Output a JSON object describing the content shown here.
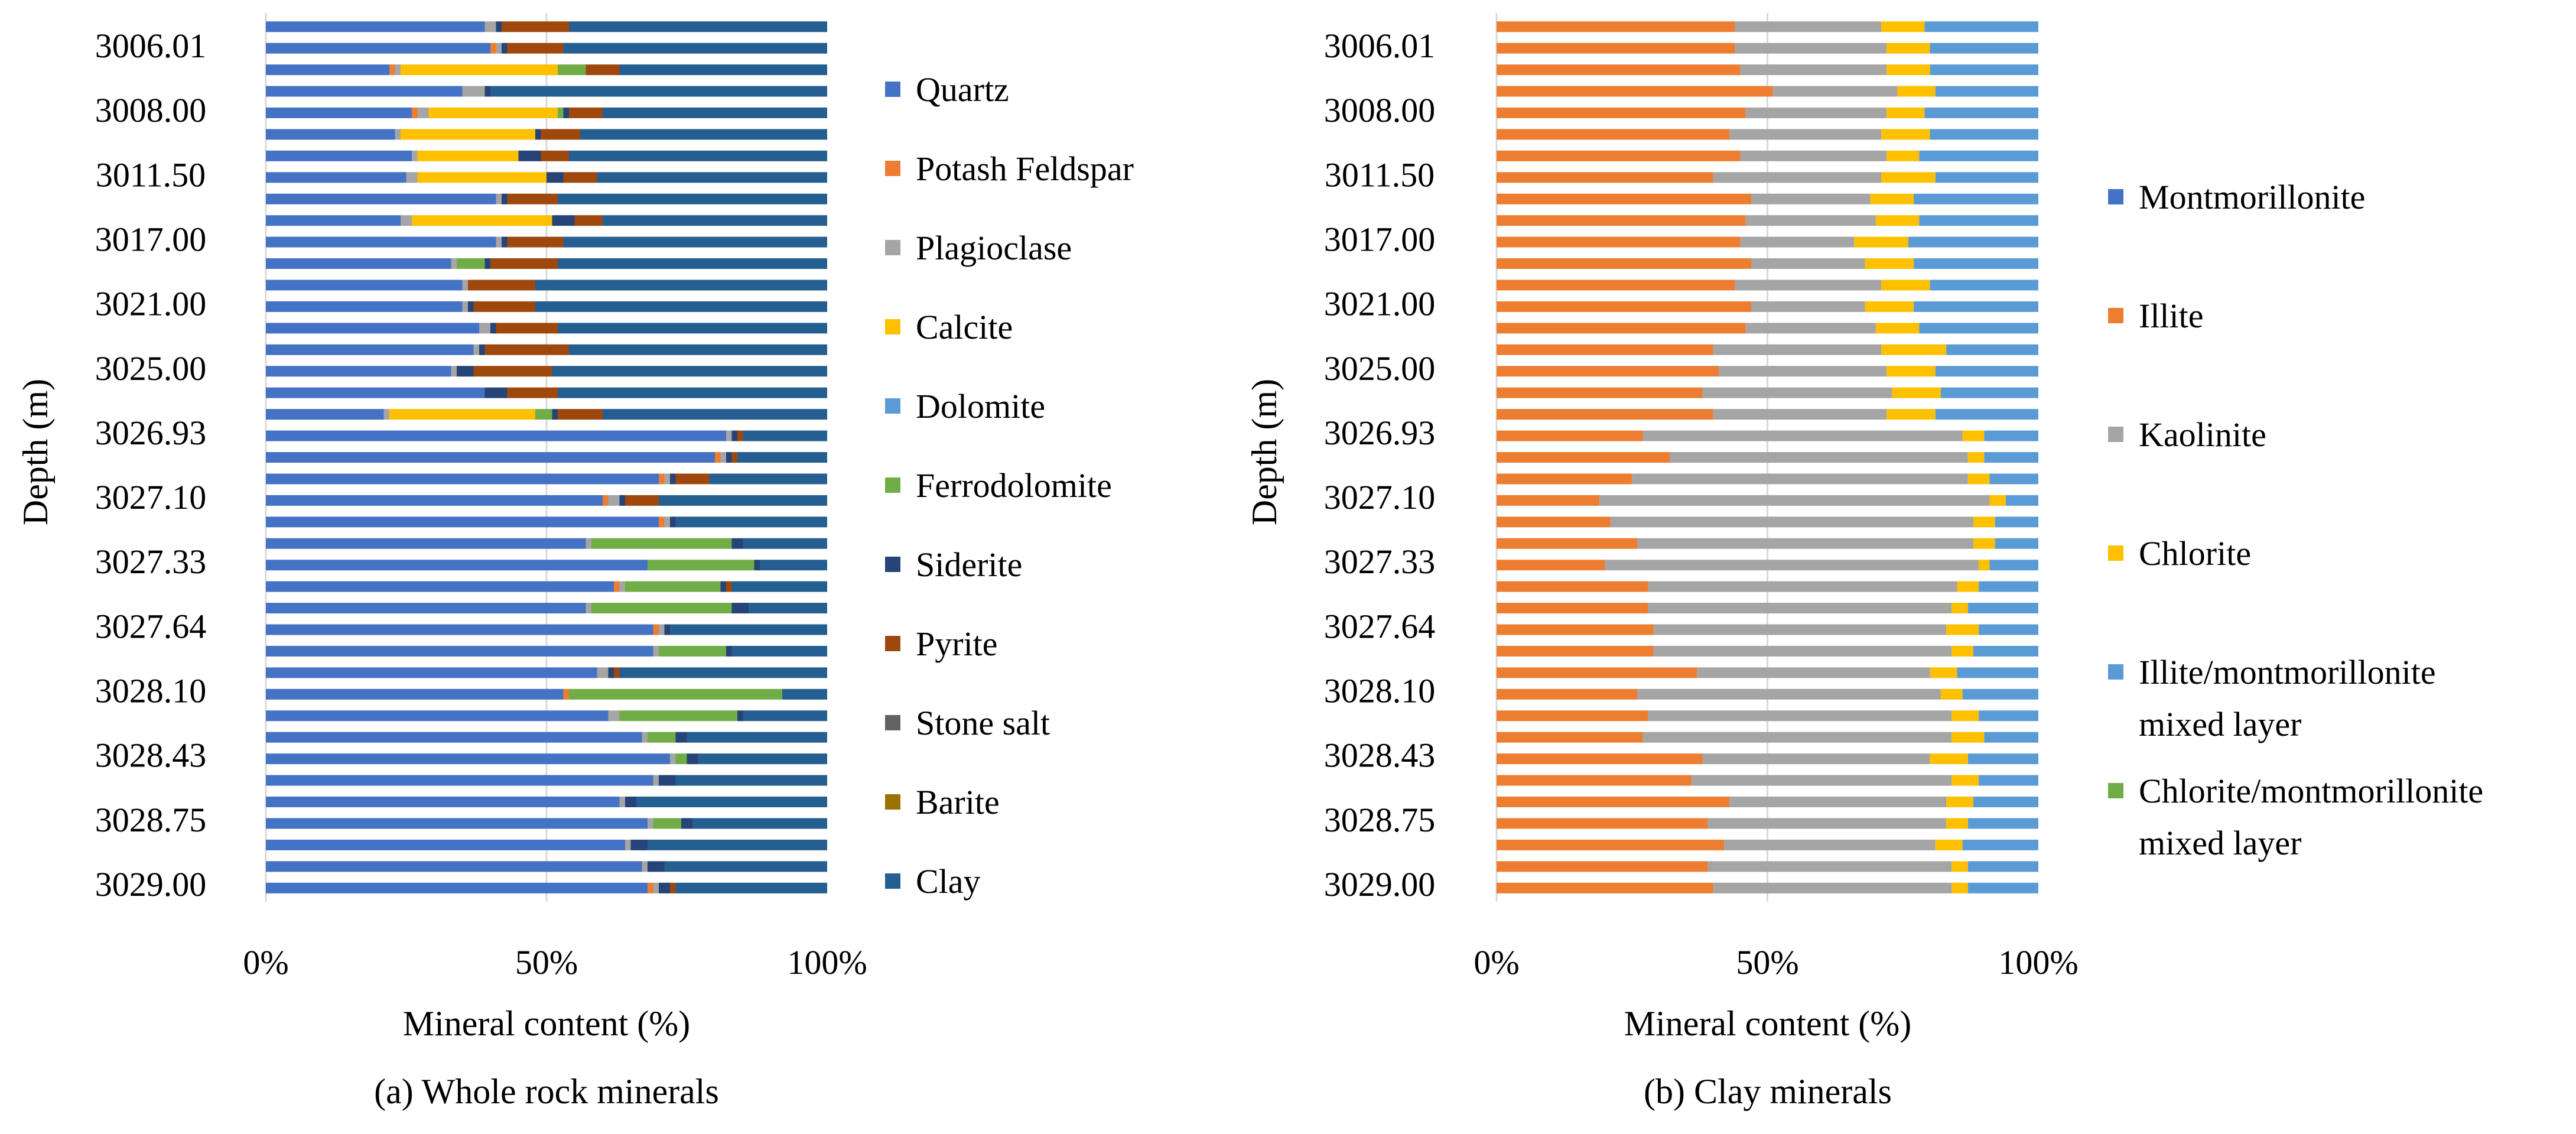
{
  "chart_data": [
    {
      "type": "bar",
      "orientation": "horizontal",
      "stacked": "percent",
      "caption": "(a) Whole rock minerals",
      "xlabel": "Mineral content (%)",
      "ylabel": "Depth (m)",
      "xticks": [
        "0%",
        "50%",
        "100%"
      ],
      "xlim": [
        0,
        100
      ],
      "grid": "vertical at 50%",
      "legend_position": "right",
      "depth_labels": [
        "3006.01",
        "3008.00",
        "3011.50",
        "3017.00",
        "3021.00",
        "3025.00",
        "3026.93",
        "3027.10",
        "3027.33",
        "3027.64",
        "3028.10",
        "3028.43",
        "3028.75",
        "3029.00"
      ],
      "legend": [
        {
          "name": "Quartz",
          "color": "#4472C4"
        },
        {
          "name": "Potash Feldspar",
          "color": "#ED7D31"
        },
        {
          "name": "Plagioclase",
          "color": "#A5A5A5"
        },
        {
          "name": "Calcite",
          "color": "#FFC000"
        },
        {
          "name": "Dolomite",
          "color": "#5B9BD5"
        },
        {
          "name": "Ferrodolomite",
          "color": "#70AD47"
        },
        {
          "name": "Siderite",
          "color": "#264478"
        },
        {
          "name": "Pyrite",
          "color": "#9E480E"
        },
        {
          "name": "Stone salt",
          "color": "#636363"
        },
        {
          "name": "Barite",
          "color": "#997300"
        },
        {
          "name": "Clay",
          "color": "#255E91"
        }
      ],
      "rows": [
        [
          39,
          0,
          2,
          0,
          0,
          0,
          1,
          12,
          0,
          0,
          46
        ],
        [
          40,
          1,
          1,
          0,
          0,
          0,
          1,
          10,
          0,
          0,
          47
        ],
        [
          22,
          1,
          1,
          28,
          0,
          5,
          0,
          6,
          0,
          0,
          37
        ],
        [
          35,
          0,
          4,
          0,
          0,
          0,
          1,
          0,
          0,
          0,
          60
        ],
        [
          26,
          1,
          2,
          23,
          0,
          1,
          1,
          6,
          0,
          0,
          40
        ],
        [
          23,
          0,
          1,
          24,
          0,
          0,
          1,
          7,
          0,
          0,
          44
        ],
        [
          26,
          0,
          1,
          18,
          0,
          0,
          4,
          5,
          0,
          0,
          46
        ],
        [
          25,
          0,
          2,
          23,
          0,
          0,
          3,
          6,
          0,
          0,
          41
        ],
        [
          41,
          0,
          1,
          0,
          0,
          0,
          1,
          9,
          0,
          0,
          48
        ],
        [
          24,
          0,
          2,
          25,
          0,
          0,
          4,
          5,
          0,
          0,
          40
        ],
        [
          41,
          0,
          1,
          0,
          0,
          0,
          1,
          10,
          0,
          0,
          47
        ],
        [
          33,
          0,
          1,
          0,
          0,
          5,
          1,
          12,
          0,
          0,
          48
        ],
        [
          35,
          0,
          1,
          0,
          0,
          0,
          0,
          12,
          0,
          0,
          52
        ],
        [
          35,
          0,
          1,
          0,
          0,
          0,
          1,
          11,
          0,
          0,
          52
        ],
        [
          38,
          0,
          2,
          0,
          0,
          0,
          1,
          11,
          0,
          0,
          48
        ],
        [
          37,
          0,
          1,
          0,
          0,
          0,
          1,
          15,
          0,
          0,
          46
        ],
        [
          33,
          0,
          1,
          0,
          0,
          0,
          3,
          14,
          0,
          0,
          49
        ],
        [
          39,
          0,
          0,
          0,
          0,
          0,
          4,
          9,
          0,
          0,
          48
        ],
        [
          21,
          0,
          1,
          26,
          0,
          3,
          1,
          8,
          0,
          0,
          40
        ],
        [
          82,
          0,
          1,
          0,
          0,
          0,
          1,
          1,
          0,
          0,
          15
        ],
        [
          80,
          1,
          1,
          0,
          0,
          0,
          1,
          1,
          0,
          0,
          16
        ],
        [
          70,
          1,
          1,
          0,
          0,
          0,
          1,
          6,
          0,
          0,
          21
        ],
        [
          60,
          1,
          2,
          0,
          0,
          0,
          1,
          6,
          0,
          0,
          30
        ],
        [
          70,
          1,
          1,
          0,
          0,
          0,
          1,
          0,
          0,
          0,
          27
        ],
        [
          57,
          0,
          1,
          0,
          0,
          25,
          2,
          0,
          0,
          0,
          15
        ],
        [
          68,
          0,
          0,
          0,
          0,
          19,
          1,
          0,
          0,
          0,
          12
        ],
        [
          62,
          1,
          1,
          0,
          0,
          17,
          1,
          1,
          0,
          0,
          17
        ],
        [
          57,
          0,
          1,
          0,
          0,
          25,
          3,
          0,
          0,
          0,
          14
        ],
        [
          69,
          1,
          1,
          0,
          0,
          0,
          1,
          0,
          0,
          0,
          28
        ],
        [
          69,
          0,
          1,
          0,
          0,
          12,
          1,
          0,
          0,
          0,
          17
        ],
        [
          59,
          0,
          2,
          0,
          0,
          0,
          1,
          1,
          0,
          0,
          37
        ],
        [
          53,
          1,
          0,
          0,
          0,
          38,
          0,
          0,
          0,
          0,
          8
        ],
        [
          61,
          0,
          2,
          0,
          0,
          21,
          1,
          0,
          0,
          0,
          15
        ],
        [
          67,
          0,
          1,
          0,
          0,
          5,
          2,
          0,
          0,
          0,
          25
        ],
        [
          72,
          0,
          1,
          0,
          0,
          2,
          2,
          0,
          0,
          0,
          23
        ],
        [
          69,
          0,
          1,
          0,
          0,
          0,
          3,
          0,
          0,
          0,
          27
        ],
        [
          63,
          0,
          1,
          0,
          0,
          0,
          2,
          0,
          0,
          0,
          34
        ],
        [
          68,
          0,
          1,
          0,
          0,
          5,
          2,
          0,
          0,
          0,
          24
        ],
        [
          64,
          0,
          1,
          0,
          0,
          0,
          3,
          0,
          0,
          0,
          32
        ],
        [
          67,
          0,
          1,
          0,
          0,
          0,
          3,
          0,
          0,
          0,
          29
        ],
        [
          68,
          1,
          1,
          0,
          0,
          0,
          2,
          1,
          0,
          0,
          27
        ]
      ]
    },
    {
      "type": "bar",
      "orientation": "horizontal",
      "stacked": "percent",
      "caption": "(b) Clay minerals",
      "xlabel": "Mineral content (%)",
      "ylabel": "Depth (m)",
      "xticks": [
        "0%",
        "50%",
        "100%"
      ],
      "xlim": [
        0,
        100
      ],
      "grid": "vertical at 50%",
      "legend_position": "right",
      "depth_labels": [
        "3006.01",
        "3008.00",
        "3011.50",
        "3017.00",
        "3021.00",
        "3025.00",
        "3026.93",
        "3027.10",
        "3027.33",
        "3027.64",
        "3028.10",
        "3028.43",
        "3028.75",
        "3029.00"
      ],
      "legend": [
        {
          "name": "Montmorillonite",
          "color": "#4472C4"
        },
        {
          "name": "Illite",
          "color": "#ED7D31"
        },
        {
          "name": "Kaolinite",
          "color": "#A5A5A5"
        },
        {
          "name": "Chlorite",
          "color": "#FFC000"
        },
        {
          "name": "Illite/montmorillonite mixed layer",
          "color": "#5B9BD5"
        },
        {
          "name": "Chlorite/montmorillonite mixed layer",
          "color": "#70AD47"
        }
      ],
      "rows": [
        [
          0,
          44,
          27,
          8,
          21,
          0
        ],
        [
          0,
          44,
          28,
          8,
          20,
          0
        ],
        [
          0,
          45,
          27,
          8,
          20,
          0
        ],
        [
          0,
          51,
          23,
          7,
          19,
          0
        ],
        [
          0,
          46,
          26,
          7,
          21,
          0
        ],
        [
          0,
          43,
          28,
          9,
          20,
          0
        ],
        [
          0,
          45,
          27,
          6,
          22,
          0
        ],
        [
          0,
          40,
          31,
          10,
          19,
          0
        ],
        [
          0,
          47,
          22,
          8,
          23,
          0
        ],
        [
          0,
          46,
          24,
          8,
          22,
          0
        ],
        [
          0,
          45,
          21,
          10,
          24,
          0
        ],
        [
          0,
          47,
          21,
          9,
          23,
          0
        ],
        [
          0,
          44,
          27,
          9,
          20,
          0
        ],
        [
          0,
          47,
          21,
          9,
          23,
          0
        ],
        [
          0,
          46,
          24,
          8,
          22,
          0
        ],
        [
          0,
          40,
          31,
          12,
          17,
          0
        ],
        [
          0,
          41,
          31,
          9,
          19,
          0
        ],
        [
          0,
          38,
          35,
          9,
          18,
          0
        ],
        [
          0,
          40,
          32,
          9,
          19,
          0
        ],
        [
          0,
          27,
          59,
          4,
          10,
          0
        ],
        [
          0,
          32,
          55,
          3,
          10,
          0
        ],
        [
          0,
          25,
          62,
          4,
          9,
          0
        ],
        [
          0,
          19,
          72,
          3,
          6,
          0
        ],
        [
          0,
          21,
          67,
          4,
          8,
          0
        ],
        [
          0,
          26,
          62,
          4,
          8,
          0
        ],
        [
          0,
          20,
          69,
          2,
          9,
          0
        ],
        [
          0,
          28,
          57,
          4,
          11,
          0
        ],
        [
          0,
          28,
          56,
          3,
          13,
          0
        ],
        [
          0,
          29,
          54,
          6,
          11,
          0
        ],
        [
          0,
          29,
          55,
          4,
          12,
          0
        ],
        [
          0,
          37,
          43,
          5,
          15,
          0
        ],
        [
          0,
          26,
          56,
          4,
          14,
          0
        ],
        [
          0,
          28,
          56,
          5,
          11,
          0
        ],
        [
          0,
          27,
          57,
          6,
          10,
          0
        ],
        [
          0,
          38,
          42,
          7,
          13,
          0
        ],
        [
          0,
          36,
          48,
          5,
          11,
          0
        ],
        [
          0,
          43,
          40,
          5,
          12,
          0
        ],
        [
          0,
          39,
          44,
          4,
          13,
          0
        ],
        [
          0,
          42,
          39,
          5,
          14,
          0
        ],
        [
          0,
          39,
          45,
          3,
          13,
          0
        ],
        [
          0,
          40,
          44,
          3,
          13,
          0
        ]
      ]
    }
  ]
}
